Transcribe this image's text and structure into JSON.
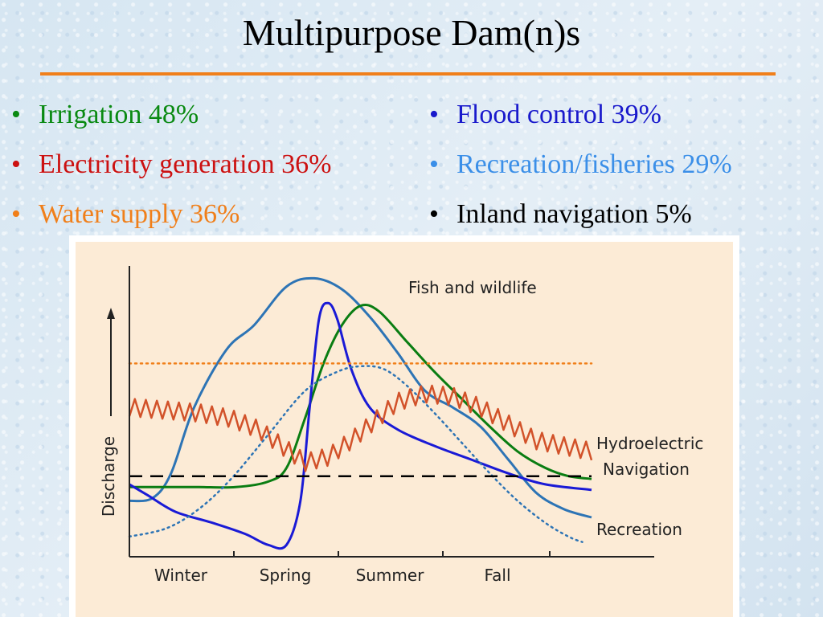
{
  "slide": {
    "title": "Multipurpose Dam(n)s",
    "rule_color": "#f07f1a"
  },
  "bullets": {
    "left": [
      {
        "text": "Irrigation 48%",
        "color": "#0a8a12"
      },
      {
        "text": "Electricity generation 36%",
        "color": "#cc1111"
      },
      {
        "text": "Water supply 36%",
        "color": "#f07f1a"
      }
    ],
    "right": [
      {
        "text": "Flood control 39%",
        "color": "#1a1acc"
      },
      {
        "text": "Recreation/fisheries 29%",
        "color": "#3b8fe8"
      },
      {
        "text": "Inland navigation 5%",
        "color": "#000000"
      }
    ]
  },
  "chart_data": {
    "type": "line",
    "title": "",
    "xlabel": "",
    "ylabel": "Discharge",
    "xlim": [
      0,
      100
    ],
    "ylim": [
      0,
      100
    ],
    "grid": false,
    "x_tick_labels": [
      "Winter",
      "Spring",
      "Summer",
      "Fall"
    ],
    "series": [
      {
        "name": "Fish and wildlife",
        "color": "#2d74b5",
        "style": "solid",
        "x": [
          0,
          5,
          9,
          14,
          21,
          27,
          34,
          40,
          46,
          52,
          58,
          64,
          70,
          76,
          82,
          88,
          94,
          100
        ],
        "y": [
          18,
          19,
          28,
          52,
          73,
          82,
          96,
          99,
          95,
          85,
          72,
          58,
          52,
          45,
          33,
          21,
          15,
          12
        ]
      },
      {
        "name": "",
        "color": "#0a7d12",
        "style": "solid",
        "x": [
          0,
          8,
          15,
          23,
          30,
          34,
          38,
          42,
          46,
          50,
          54,
          60,
          66,
          72,
          78,
          84,
          90,
          95,
          100
        ],
        "y": [
          23,
          23,
          23,
          23,
          25,
          30,
          48,
          68,
          82,
          89,
          87,
          76,
          65,
          55,
          45,
          36,
          30,
          27,
          26
        ]
      },
      {
        "name": "",
        "color": "#1a1ad6",
        "style": "solid",
        "x": [
          0,
          4,
          10,
          18,
          25,
          30,
          34,
          37,
          39,
          41,
          43,
          45,
          48,
          52,
          58,
          66,
          74,
          82,
          90,
          100
        ],
        "y": [
          24,
          20,
          14,
          10,
          6,
          2,
          2,
          18,
          52,
          84,
          90,
          84,
          66,
          52,
          44,
          38,
          33,
          28,
          24,
          22
        ]
      },
      {
        "name": "Recreation",
        "color": "#2d74b5",
        "style": "dotted",
        "x": [
          0,
          8,
          15,
          22,
          30,
          38,
          45,
          50,
          55,
          60,
          66,
          72,
          78,
          84,
          90,
          95,
          98
        ],
        "y": [
          5,
          8,
          15,
          26,
          42,
          58,
          65,
          67,
          66,
          60,
          50,
          39,
          28,
          18,
          10,
          5,
          3
        ]
      },
      {
        "name": "Navigation",
        "color": "#000000",
        "style": "dashed",
        "x": [
          0,
          100
        ],
        "y": [
          27,
          27
        ]
      },
      {
        "name": "",
        "color": "#f07f1a",
        "style": "dotted",
        "x": [
          0,
          100
        ],
        "y": [
          68,
          68
        ]
      },
      {
        "name": "Hydroelectric",
        "color": "#d2522a",
        "style": "jagged",
        "x": [
          0,
          8,
          15,
          22,
          28,
          33,
          38,
          43,
          48,
          53,
          58,
          64,
          70,
          76,
          82,
          88,
          94,
          100
        ],
        "y": [
          52,
          51,
          50,
          48,
          44,
          38,
          32,
          34,
          40,
          47,
          54,
          57,
          56,
          52,
          46,
          40,
          38,
          36
        ]
      }
    ],
    "annotations": [
      {
        "text": "Fish and wildlife",
        "series": "Fish and wildlife"
      },
      {
        "text": "Hydroelectric",
        "series": "Hydroelectric"
      },
      {
        "text": "Navigation",
        "series": "Navigation"
      },
      {
        "text": "Recreation",
        "series": "Recreation"
      }
    ],
    "colors": {
      "plot_background": "#fcebd6",
      "axis": "#222222"
    }
  }
}
